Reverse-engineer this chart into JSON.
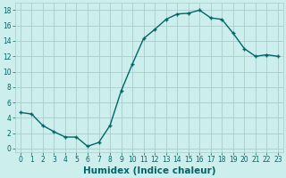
{
  "x": [
    0,
    1,
    2,
    3,
    4,
    5,
    6,
    7,
    8,
    9,
    10,
    11,
    12,
    13,
    14,
    15,
    16,
    17,
    18,
    19,
    20,
    21,
    22,
    23
  ],
  "y": [
    4.7,
    4.5,
    3.0,
    2.2,
    1.5,
    1.5,
    0.3,
    0.8,
    3.0,
    7.5,
    11.0,
    14.3,
    15.5,
    16.8,
    17.5,
    17.6,
    18.0,
    17.0,
    16.8,
    15.0,
    13.0,
    12.0,
    12.2,
    12.0
  ],
  "line_color": "#006666",
  "marker": "+",
  "marker_size": 3,
  "marker_lw": 1.0,
  "bg_color": "#cceeed",
  "grid_color": "#aacccc",
  "xlabel": "Humidex (Indice chaleur)",
  "xlabel_fontsize": 7.5,
  "xlabel_color": "#006666",
  "xlabel_bold": true,
  "ylim": [
    -0.5,
    19
  ],
  "xlim": [
    -0.5,
    23.5
  ],
  "yticks": [
    0,
    2,
    4,
    6,
    8,
    10,
    12,
    14,
    16,
    18
  ],
  "xticks": [
    0,
    1,
    2,
    3,
    4,
    5,
    6,
    7,
    8,
    9,
    10,
    11,
    12,
    13,
    14,
    15,
    16,
    17,
    18,
    19,
    20,
    21,
    22,
    23
  ],
  "tick_color": "#006666",
  "tick_fontsize": 5.5,
  "line_width": 1.0
}
